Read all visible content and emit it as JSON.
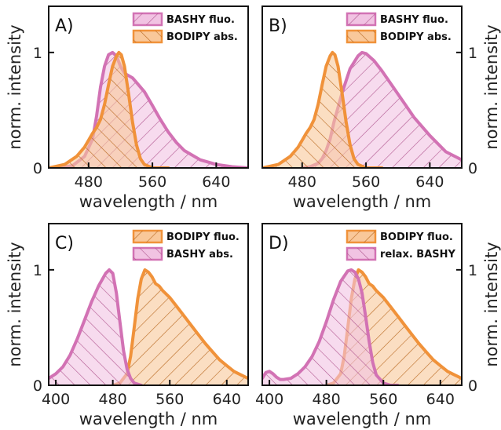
{
  "colors": {
    "pink_line": "#d272b4",
    "pink_fill": "#f1c3e2",
    "orange_line": "#f0923a",
    "orange_fill": "#f9c89a",
    "hatch_pink": "#b0568f",
    "hatch_orange": "#b8681f"
  },
  "chart_data": [
    {
      "type": "area",
      "panel_label": "A)",
      "xlabel": "wavelength / nm",
      "ylabel": "norm. intensity",
      "xlim": [
        430,
        680
      ],
      "ylim": [
        0,
        1.4
      ],
      "xticks": [
        480,
        560,
        640
      ],
      "yticks": [
        0,
        1
      ],
      "ytick_labels_side": "left",
      "legend": {
        "placement": "top-right"
      },
      "series": [
        {
          "name": "BASHY fluo.",
          "color": "pink",
          "hatch": "\\",
          "x": [
            440,
            460,
            475,
            485,
            490,
            495,
            500,
            505,
            510,
            515,
            520,
            525,
            530,
            535,
            540,
            550,
            560,
            570,
            580,
            590,
            600,
            620,
            640,
            660,
            680
          ],
          "y": [
            0.0,
            0.02,
            0.1,
            0.25,
            0.45,
            0.7,
            0.88,
            0.98,
            1.0,
            0.97,
            0.88,
            0.82,
            0.8,
            0.78,
            0.74,
            0.66,
            0.54,
            0.42,
            0.31,
            0.22,
            0.15,
            0.07,
            0.03,
            0.01,
            0.0
          ]
        },
        {
          "name": "BODIPY abs.",
          "color": "orange",
          "hatch": "/",
          "x": [
            430,
            450,
            465,
            475,
            480,
            485,
            490,
            495,
            500,
            505,
            510,
            515,
            518,
            521,
            525,
            530,
            535,
            540,
            545,
            550,
            560,
            580
          ],
          "y": [
            0.0,
            0.03,
            0.1,
            0.18,
            0.24,
            0.3,
            0.35,
            0.42,
            0.55,
            0.72,
            0.88,
            0.97,
            1.0,
            0.98,
            0.88,
            0.65,
            0.4,
            0.2,
            0.08,
            0.03,
            0.0,
            0.0
          ]
        }
      ]
    },
    {
      "type": "area",
      "panel_label": "B)",
      "xlabel": "wavelength / nm",
      "ylabel": "norm. intensity",
      "xlim": [
        430,
        680
      ],
      "ylim": [
        0,
        1.4
      ],
      "xticks": [
        480,
        560,
        640
      ],
      "yticks": [
        0,
        1
      ],
      "ytick_labels_side": "right",
      "legend": {
        "placement": "top-right"
      },
      "series": [
        {
          "name": "BASHY fluo.",
          "color": "pink",
          "hatch": "\\",
          "x": [
            480,
            490,
            500,
            505,
            510,
            515,
            520,
            530,
            540,
            550,
            555,
            560,
            570,
            580,
            590,
            600,
            610,
            620,
            640,
            660,
            680
          ],
          "y": [
            0.0,
            0.01,
            0.04,
            0.08,
            0.15,
            0.25,
            0.4,
            0.65,
            0.86,
            0.97,
            1.0,
            0.99,
            0.93,
            0.84,
            0.74,
            0.64,
            0.54,
            0.44,
            0.28,
            0.14,
            0.07
          ]
        },
        {
          "name": "BODIPY abs.",
          "color": "orange",
          "hatch": "/",
          "x": [
            430,
            450,
            465,
            475,
            480,
            485,
            490,
            495,
            500,
            505,
            510,
            515,
            518,
            521,
            525,
            530,
            535,
            540,
            545,
            550,
            560,
            580
          ],
          "y": [
            0.0,
            0.03,
            0.1,
            0.18,
            0.24,
            0.3,
            0.35,
            0.42,
            0.55,
            0.72,
            0.88,
            0.97,
            1.0,
            0.98,
            0.88,
            0.65,
            0.4,
            0.2,
            0.08,
            0.03,
            0.0,
            0.0
          ]
        }
      ]
    },
    {
      "type": "area",
      "panel_label": "C)",
      "xlabel": "wavelength / nm",
      "ylabel": "norm. intensity",
      "xlim": [
        390,
        670
      ],
      "ylim": [
        0,
        1.4
      ],
      "xticks": [
        400,
        480,
        560,
        640
      ],
      "yticks": [
        0,
        1
      ],
      "ytick_labels_side": "left",
      "legend": {
        "placement": "top-right"
      },
      "series": [
        {
          "name": "BODIPY fluo.",
          "color": "orange",
          "hatch": "\\",
          "x": [
            480,
            490,
            500,
            505,
            510,
            515,
            520,
            525,
            530,
            535,
            540,
            545,
            550,
            560,
            570,
            580,
            590,
            600,
            610,
            620,
            630,
            640,
            650,
            660,
            670
          ],
          "y": [
            0.0,
            0.02,
            0.1,
            0.25,
            0.5,
            0.75,
            0.92,
            1.0,
            0.98,
            0.94,
            0.88,
            0.86,
            0.82,
            0.76,
            0.68,
            0.6,
            0.52,
            0.44,
            0.36,
            0.29,
            0.22,
            0.17,
            0.12,
            0.09,
            0.06
          ]
        },
        {
          "name": "BASHY abs.",
          "color": "pink",
          "hatch": "/",
          "x": [
            390,
            400,
            410,
            420,
            430,
            440,
            450,
            460,
            470,
            475,
            480,
            485,
            490,
            495,
            500,
            505,
            510,
            520
          ],
          "y": [
            0.06,
            0.1,
            0.16,
            0.26,
            0.4,
            0.56,
            0.72,
            0.86,
            0.97,
            1.0,
            0.97,
            0.8,
            0.55,
            0.3,
            0.14,
            0.06,
            0.02,
            0.0
          ]
        }
      ]
    },
    {
      "type": "area",
      "panel_label": "D)",
      "xlabel": "wavelength / nm",
      "ylabel": "norm. intensity",
      "xlim": [
        390,
        670
      ],
      "ylim": [
        0,
        1.4
      ],
      "xticks": [
        400,
        480,
        560,
        640
      ],
      "yticks": [
        0,
        1
      ],
      "ytick_labels_side": "right",
      "legend": {
        "placement": "top-right"
      },
      "series": [
        {
          "name": "BODIPY fluo.",
          "color": "orange",
          "hatch": "\\",
          "x": [
            480,
            490,
            500,
            505,
            510,
            515,
            520,
            525,
            530,
            535,
            540,
            545,
            550,
            560,
            570,
            580,
            590,
            600,
            610,
            620,
            630,
            640,
            650,
            660,
            670
          ],
          "y": [
            0.0,
            0.02,
            0.1,
            0.25,
            0.5,
            0.75,
            0.92,
            1.0,
            0.98,
            0.94,
            0.88,
            0.86,
            0.82,
            0.76,
            0.68,
            0.6,
            0.52,
            0.44,
            0.36,
            0.29,
            0.22,
            0.17,
            0.12,
            0.09,
            0.06
          ]
        },
        {
          "name": "relax. BASHY",
          "color": "pink",
          "hatch": "/",
          "x": [
            390,
            395,
            400,
            405,
            410,
            415,
            420,
            430,
            440,
            450,
            460,
            470,
            480,
            490,
            500,
            510,
            515,
            520,
            525,
            530,
            535,
            540,
            545,
            550,
            560,
            570,
            580
          ],
          "y": [
            0.06,
            0.11,
            0.12,
            0.1,
            0.07,
            0.05,
            0.05,
            0.06,
            0.1,
            0.16,
            0.25,
            0.38,
            0.55,
            0.74,
            0.9,
            0.99,
            1.0,
            0.98,
            0.92,
            0.8,
            0.6,
            0.38,
            0.2,
            0.09,
            0.02,
            0.0,
            0.0
          ]
        }
      ]
    }
  ]
}
